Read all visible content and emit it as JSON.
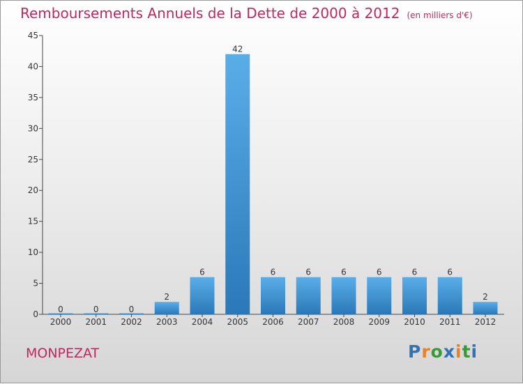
{
  "title": "Remboursements Annuels de la Dette de 2000 à 2012",
  "unit": "(en milliers d'€)",
  "commune": "MONPEZAT",
  "logo": {
    "letters": [
      "P",
      "r",
      "o",
      "x",
      "i",
      "t",
      "i"
    ],
    "colors": [
      "#2f73b6",
      "#e7812a",
      "#3a9a3a",
      "#2f73b6",
      "#e7812a",
      "#3a9a3a",
      "#2f73b6"
    ]
  },
  "colors": {
    "title": "#c0275e",
    "bar_light": "#5aaee8",
    "bar_dark": "#2a78b8"
  },
  "chart_data": {
    "type": "bar",
    "categories": [
      "2000",
      "2001",
      "2002",
      "2003",
      "2004",
      "2005",
      "2006",
      "2007",
      "2008",
      "2009",
      "2010",
      "2011",
      "2012"
    ],
    "values": [
      0,
      0,
      0,
      2,
      6,
      42,
      6,
      6,
      6,
      6,
      6,
      6,
      2
    ],
    "ylim": [
      0,
      45
    ],
    "yticks": [
      0,
      5,
      10,
      15,
      20,
      25,
      30,
      35,
      40,
      45
    ],
    "grid": false,
    "data_labels": true
  }
}
